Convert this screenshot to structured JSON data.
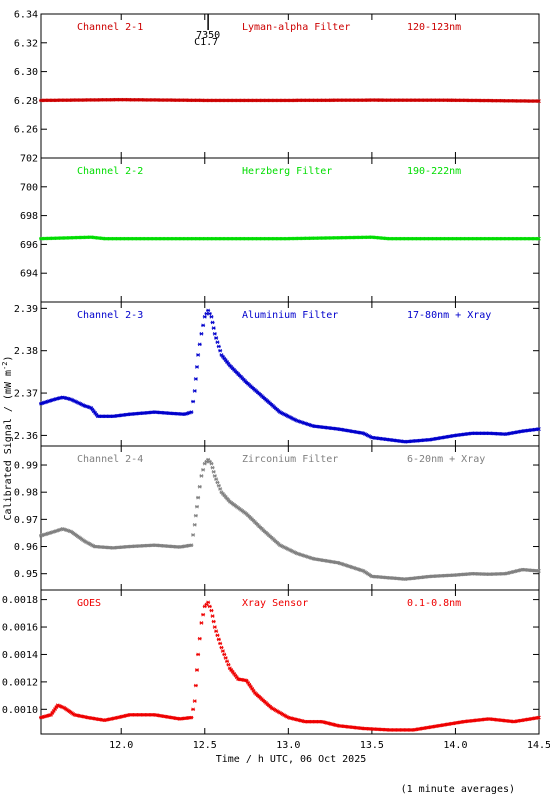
{
  "chart_data": {
    "type": "scatter",
    "shared_x_axis": {
      "label": "Time / h UTC, 06 Oct 2025",
      "range": [
        11.52,
        14.5
      ],
      "ticks": [
        "12.0",
        "12.5",
        "13.0",
        "13.5",
        "14.0",
        "14.5"
      ]
    },
    "y_axis_label": "Calibrated Signal / (mW m",
    "y_axis_label_exponent": "-2",
    "y_axis_label_close": ")",
    "footnote": "(1 minute averages)",
    "flare_marker": {
      "x": 12.52,
      "label_top": "7350",
      "label_bottom": "C1.7"
    },
    "panels": [
      {
        "name": "Channel 2-1",
        "filter": "Lyman-alpha Filter",
        "band": "120-123nm",
        "color": "#cc0000",
        "ylim": [
          6.24,
          6.34
        ],
        "yticks": [
          "6.26",
          "6.28",
          "6.30",
          "6.32",
          "6.34"
        ],
        "points": [
          [
            11.52,
            6.28
          ],
          [
            12.0,
            6.2805
          ],
          [
            12.5,
            6.28
          ],
          [
            13.0,
            6.28
          ],
          [
            13.5,
            6.2802
          ],
          [
            14.0,
            6.2801
          ],
          [
            14.5,
            6.2795
          ]
        ]
      },
      {
        "name": "Channel 2-2",
        "filter": "Herzberg Filter",
        "band": "190-222nm",
        "color": "#00dd00",
        "ylim": [
          692.0,
          702.0
        ],
        "yticks": [
          "694",
          "696",
          "698",
          "700",
          "702"
        ],
        "points": [
          [
            11.52,
            696.4
          ],
          [
            11.82,
            696.5
          ],
          [
            11.9,
            696.4
          ],
          [
            12.5,
            696.4
          ],
          [
            13.0,
            696.4
          ],
          [
            13.5,
            696.5
          ],
          [
            13.6,
            696.4
          ],
          [
            14.5,
            696.4
          ]
        ]
      },
      {
        "name": "Channel 2-3",
        "filter": "Aluminium Filter",
        "band": "17-80nm + Xray",
        "color": "#0000cc",
        "ylim": [
          2.3575,
          2.3915
        ],
        "yticks": [
          "2.36",
          "2.37",
          "2.38",
          "2.39"
        ],
        "points": [
          [
            11.52,
            2.3675
          ],
          [
            11.6,
            2.3685
          ],
          [
            11.65,
            2.369
          ],
          [
            11.7,
            2.3685
          ],
          [
            11.78,
            2.367
          ],
          [
            11.82,
            2.3665
          ],
          [
            11.86,
            2.3645
          ],
          [
            11.95,
            2.3645
          ],
          [
            12.05,
            2.365
          ],
          [
            12.2,
            2.3655
          ],
          [
            12.3,
            2.3652
          ],
          [
            12.38,
            2.365
          ],
          [
            12.42,
            2.3655
          ],
          [
            12.44,
            2.3705
          ],
          [
            12.46,
            2.379
          ],
          [
            12.48,
            2.384
          ],
          [
            12.5,
            2.388
          ],
          [
            12.52,
            2.3895
          ],
          [
            12.54,
            2.388
          ],
          [
            12.56,
            2.384
          ],
          [
            12.6,
            2.379
          ],
          [
            12.65,
            2.3765
          ],
          [
            12.75,
            2.3725
          ],
          [
            12.85,
            2.369
          ],
          [
            12.95,
            2.3655
          ],
          [
            13.05,
            2.3635
          ],
          [
            13.15,
            2.3622
          ],
          [
            13.3,
            2.3615
          ],
          [
            13.45,
            2.3605
          ],
          [
            13.5,
            2.3595
          ],
          [
            13.6,
            2.359
          ],
          [
            13.7,
            2.3585
          ],
          [
            13.85,
            2.359
          ],
          [
            14.0,
            2.36
          ],
          [
            14.1,
            2.3605
          ],
          [
            14.2,
            2.3605
          ],
          [
            14.3,
            2.3603
          ],
          [
            14.4,
            2.361
          ],
          [
            14.5,
            2.3615
          ]
        ]
      },
      {
        "name": "Channel 2-4",
        "filter": "Zirconium Filter",
        "band": "6-20nm + Xray",
        "color": "#808080",
        "ylim": [
          0.944,
          0.997
        ],
        "yticks": [
          "0.95",
          "0.96",
          "0.97",
          "0.98",
          "0.99"
        ],
        "points": [
          [
            11.52,
            0.964
          ],
          [
            11.6,
            0.9655
          ],
          [
            11.65,
            0.9665
          ],
          [
            11.7,
            0.9655
          ],
          [
            11.78,
            0.962
          ],
          [
            11.84,
            0.96
          ],
          [
            11.95,
            0.9595
          ],
          [
            12.05,
            0.96
          ],
          [
            12.2,
            0.9605
          ],
          [
            12.35,
            0.9598
          ],
          [
            12.42,
            0.9605
          ],
          [
            12.44,
            0.968
          ],
          [
            12.46,
            0.978
          ],
          [
            12.48,
            0.986
          ],
          [
            12.5,
            0.9905
          ],
          [
            12.52,
            0.992
          ],
          [
            12.54,
            0.9905
          ],
          [
            12.56,
            0.986
          ],
          [
            12.6,
            0.98
          ],
          [
            12.65,
            0.9765
          ],
          [
            12.75,
            0.972
          ],
          [
            12.85,
            0.966
          ],
          [
            12.95,
            0.9605
          ],
          [
            13.05,
            0.9575
          ],
          [
            13.15,
            0.9555
          ],
          [
            13.3,
            0.954
          ],
          [
            13.45,
            0.951
          ],
          [
            13.5,
            0.949
          ],
          [
            13.6,
            0.9485
          ],
          [
            13.7,
            0.948
          ],
          [
            13.85,
            0.949
          ],
          [
            14.0,
            0.9495
          ],
          [
            14.1,
            0.95
          ],
          [
            14.2,
            0.9498
          ],
          [
            14.3,
            0.95
          ],
          [
            14.4,
            0.9515
          ],
          [
            14.5,
            0.951
          ]
        ]
      },
      {
        "name": "GOES",
        "filter": "Xray Sensor",
        "band": "0.1-0.8nm",
        "color": "#ee0000",
        "ylim": [
          0.00082,
          0.00187
        ],
        "yticks": [
          "0.0010",
          "0.0012",
          "0.0014",
          "0.0016",
          "0.0018"
        ],
        "points": [
          [
            11.52,
            0.00094
          ],
          [
            11.58,
            0.00096
          ],
          [
            11.62,
            0.00103
          ],
          [
            11.66,
            0.00101
          ],
          [
            11.72,
            0.00096
          ],
          [
            11.8,
            0.00094
          ],
          [
            11.9,
            0.00092
          ],
          [
            11.98,
            0.00094
          ],
          [
            12.05,
            0.00096
          ],
          [
            12.2,
            0.00096
          ],
          [
            12.35,
            0.00093
          ],
          [
            12.42,
            0.00094
          ],
          [
            12.44,
            0.00106
          ],
          [
            12.46,
            0.0014
          ],
          [
            12.48,
            0.00163
          ],
          [
            12.5,
            0.00175
          ],
          [
            12.52,
            0.00178
          ],
          [
            12.54,
            0.00172
          ],
          [
            12.56,
            0.0016
          ],
          [
            12.6,
            0.00145
          ],
          [
            12.65,
            0.0013
          ],
          [
            12.7,
            0.00122
          ],
          [
            12.75,
            0.00121
          ],
          [
            12.8,
            0.00112
          ],
          [
            12.9,
            0.00101
          ],
          [
            13.0,
            0.00094
          ],
          [
            13.1,
            0.00091
          ],
          [
            13.2,
            0.00091
          ],
          [
            13.3,
            0.00088
          ],
          [
            13.45,
            0.00086
          ],
          [
            13.6,
            0.00085
          ],
          [
            13.75,
            0.00085
          ],
          [
            13.9,
            0.00088
          ],
          [
            14.05,
            0.00091
          ],
          [
            14.2,
            0.00093
          ],
          [
            14.35,
            0.00091
          ],
          [
            14.45,
            0.00093
          ],
          [
            14.5,
            0.00094
          ]
        ]
      }
    ]
  }
}
